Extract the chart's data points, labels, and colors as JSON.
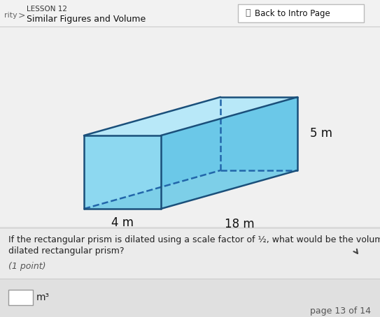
{
  "bg_color": "#ebebeb",
  "header_bg": "#f2f2f2",
  "content_bg": "#efefef",
  "prism_fill_front": "#8dd8f0",
  "prism_fill_top": "#b8e8f8",
  "prism_fill_right": "#6bc8e8",
  "prism_fill_bottom_right": "#7dcfe8",
  "prism_edge_color": "#1a4f7a",
  "prism_dash_color": "#2266aa",
  "label_4m": "4 m",
  "label_18m": "18 m",
  "label_5m": "5 m",
  "header_text1": "LESSON 12",
  "header_text2": "Similar Figures and Volume",
  "header_btn": "Back to Intro Page",
  "question_line1": "If the rectangular prism is dilated using a scale factor of ½, what would be the volume of the",
  "question_line2": "dilated rectangular prism?",
  "point_text": "(1 point)",
  "unit_text": "m³",
  "footer_text": "page 13 of 14",
  "text_color": "#222222"
}
